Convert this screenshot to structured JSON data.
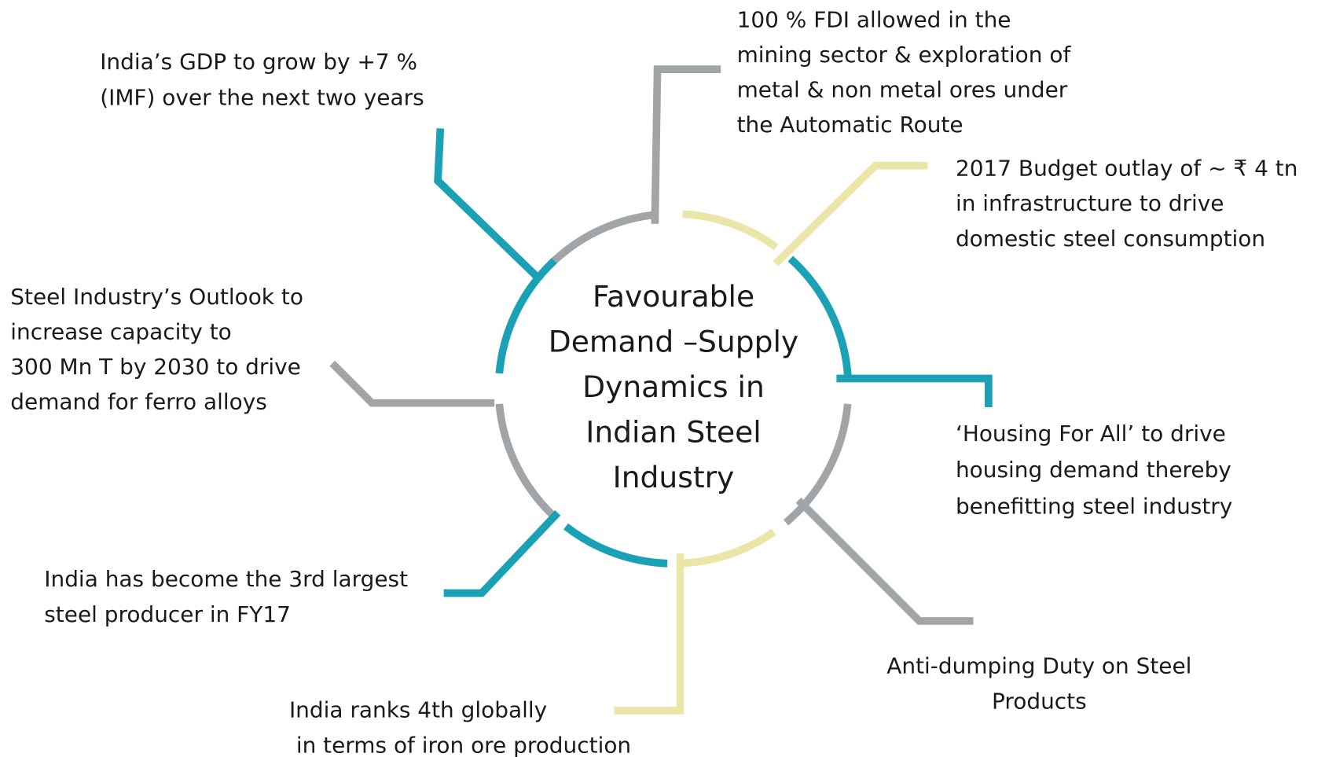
{
  "center": {
    "lines": [
      "Favourable",
      "Demand –Supply",
      "Dynamics in",
      "Indian Steel",
      "Industry"
    ]
  },
  "nodes": [
    {
      "lines": [
        "India’s GDP to grow by +7 %",
        "(IMF) over the next two years"
      ]
    },
    {
      "lines": [
        "100 % FDI allowed in the",
        "mining sector & exploration of",
        "metal & non metal ores under",
        "the Automatic Route"
      ]
    },
    {
      "lines": [
        "2017 Budget outlay of ~ ₹ 4 tn",
        "in infrastructure to drive",
        "domestic steel consumption"
      ]
    },
    {
      "lines": [
        "‘Housing For All’ to drive",
        "housing demand thereby",
        "benefitting steel industry"
      ]
    },
    {
      "lines": [
        "Anti-dumping Duty on Steel",
        "Products"
      ]
    },
    {
      "lines": [
        "India ranks 4th globally",
        " in terms of iron ore production"
      ]
    },
    {
      "lines": [
        "India has become the 3rd largest",
        "steel producer in FY17"
      ]
    },
    {
      "lines": [
        "Steel Industry’s Outlook to",
        "increase capacity to",
        "300 Mn T by 2030 to drive",
        "demand for ferro alloys"
      ]
    }
  ]
}
